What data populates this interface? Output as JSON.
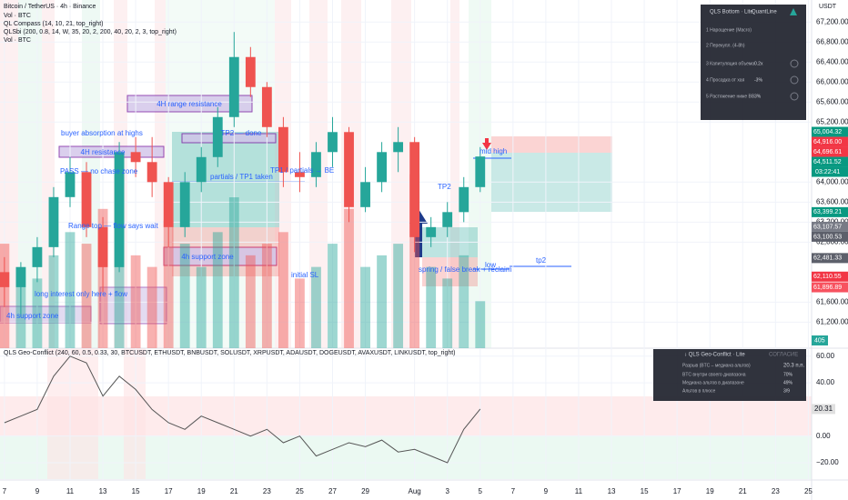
{
  "header": {
    "symbol": "Bitcoin / TetherUS · 4h · Binance",
    "lines": [
      "Vol · BTC",
      "QL Compass (14, 10, 21, top_right)",
      "QLSbi (200, 0.8, 14, W, 35, 20, 2, 200, 40, 20, 2, 3, top_right)",
      "Vol · BTC"
    ],
    "currency": "USDT",
    "countdown": "03:22:41"
  },
  "chart_data": [
    {
      "type": "candlestick",
      "x": [
        7,
        8,
        9,
        10,
        11,
        12,
        13,
        14,
        15,
        16,
        17,
        18,
        19,
        20,
        21,
        22,
        23,
        24,
        25,
        26,
        27,
        28,
        29,
        30,
        31,
        32,
        33,
        34,
        35,
        36
      ],
      "open": [
        62200,
        61900,
        62300,
        62700,
        63700,
        64200,
        63100,
        62300,
        64600,
        64400,
        64000,
        63100,
        64000,
        64500,
        65300,
        66500,
        65900,
        65100,
        64200,
        64100,
        64600,
        65000,
        63500,
        64000,
        64600,
        64800,
        62900,
        63100,
        63400,
        63900
      ],
      "high": [
        62500,
        62400,
        62900,
        63900,
        64500,
        64400,
        63300,
        64800,
        64900,
        64900,
        64100,
        64200,
        64700,
        65500,
        67000,
        66700,
        66000,
        65300,
        64600,
        64800,
        65300,
        65100,
        64300,
        64800,
        65100,
        64900,
        63300,
        63600,
        64100,
        64700
      ],
      "low": [
        61500,
        61300,
        62000,
        62500,
        63500,
        62900,
        61800,
        62200,
        64100,
        63700,
        62700,
        62900,
        63800,
        64300,
        65100,
        65700,
        64900,
        63900,
        63800,
        63900,
        64300,
        63200,
        63400,
        63800,
        64200,
        62600,
        62700,
        62900,
        63200,
        63800
      ],
      "close": [
        61900,
        62300,
        62700,
        63700,
        64200,
        63100,
        62300,
        64600,
        64400,
        64000,
        63100,
        64000,
        64500,
        65300,
        66500,
        65900,
        65100,
        64200,
        64100,
        64600,
        65000,
        63500,
        64000,
        64600,
        64800,
        62900,
        63100,
        63400,
        63900,
        64511.52
      ],
      "volume": [
        900,
        700,
        600,
        800,
        1000,
        900,
        1200,
        1500,
        800,
        700,
        1100,
        900,
        700,
        1000,
        1300,
        800,
        900,
        1000,
        600,
        700,
        900,
        1200,
        700,
        800,
        900,
        1500,
        700,
        600,
        800,
        405
      ],
      "volume_lim": [
        0,
        3000
      ],
      "up_color": "#26a69a",
      "down_color": "#ef5350",
      "xlim": [
        6.73,
        56.2
      ],
      "ylim": [
        60680,
        67640
      ],
      "yticks": [
        {
          "value": 67200,
          "label": "67,200.00"
        },
        {
          "value": 66800,
          "label": "66,800.00"
        },
        {
          "value": 66400,
          "label": "66,400.00"
        },
        {
          "value": 66000,
          "label": "66,000.00"
        },
        {
          "value": 65600,
          "label": "65,600.00"
        },
        {
          "value": 65200,
          "label": "65,200.00"
        },
        {
          "value": 64000,
          "label": "64,000.00"
        },
        {
          "value": 63600,
          "label": "63,600.00"
        },
        {
          "value": 63200,
          "label": "63,200.00"
        },
        {
          "value": 62800,
          "label": "62,800.00"
        },
        {
          "value": 61600,
          "label": "61,600.00"
        },
        {
          "value": 61200,
          "label": "61,200.00"
        }
      ],
      "xticks": [
        7,
        9,
        11,
        13,
        15,
        17,
        19,
        21,
        23,
        25,
        27,
        29,
        {
          "value": 32,
          "label": "Aug"
        },
        {
          "value": 34,
          "label": "3"
        },
        {
          "value": 36,
          "label": "5"
        },
        {
          "value": 38,
          "label": "7"
        },
        {
          "value": 40,
          "label": "9"
        },
        {
          "value": 42,
          "label": "11"
        },
        {
          "value": 44,
          "label": "13"
        },
        {
          "value": 46,
          "label": "15"
        },
        {
          "value": 48,
          "label": "17"
        },
        {
          "value": 50,
          "label": "19"
        },
        {
          "value": 52,
          "label": "21"
        },
        {
          "value": 54,
          "label": "23"
        },
        {
          "value": 56,
          "label": "25"
        }
      ],
      "price_labels": [
        {
          "value": 65004.32,
          "label": "65,004.32",
          "color": "#089981"
        },
        {
          "value": 64916,
          "label": "64,916.00",
          "color": "#f23645"
        },
        {
          "value": 64696.61,
          "label": "64,696.61",
          "color": "#f23645"
        },
        {
          "value": 64511.52,
          "label": "64,511.52",
          "color": "#089981"
        },
        {
          "value": 63399.21,
          "label": "63,399.21",
          "color": "#089981"
        },
        {
          "value": 63107.57,
          "label": "63,107.57",
          "color": "#787b86"
        },
        {
          "value": 63100.53,
          "label": "63,100.53",
          "color": "#5d606b"
        },
        {
          "value": 62481.33,
          "label": "62,481.33",
          "color": "#5d606b"
        },
        {
          "value": 62110.55,
          "label": "62,110.55",
          "color": "#f23645"
        },
        {
          "value": 61896.89,
          "label": "61,896.89",
          "color": "#f7525f"
        }
      ]
    },
    {
      "type": "line",
      "title": "QLS Geo-Conflict (240, 60, 0.5, 0.33, 30, BTCUSDT, ETHUSDT, BNBUSDT, SOLUSDT, XRPUSDT, ADAUSDT, DOGEUSDT, AVAXUSDT, LINKUSDT, top_right)",
      "x": [
        7,
        8,
        9,
        10,
        11,
        12,
        13,
        14,
        15,
        16,
        17,
        18,
        19,
        20,
        21,
        22,
        23,
        24,
        25,
        26,
        27,
        28,
        29,
        30,
        31,
        32,
        33,
        34,
        35,
        36
      ],
      "values": [
        10,
        15,
        20,
        45,
        60,
        55,
        30,
        45,
        35,
        20,
        10,
        5,
        15,
        10,
        5,
        0,
        5,
        -5,
        0,
        -15,
        -10,
        -5,
        -8,
        -3,
        -12,
        -10,
        -15,
        -20,
        5,
        20.31
      ],
      "color": "#555555",
      "ylim": [
        -33,
        66
      ],
      "yticks": [
        {
          "value": 60,
          "label": "60.00"
        },
        {
          "value": 40,
          "label": "40.00"
        },
        {
          "value": 0,
          "label": "0.00"
        },
        {
          "value": -20,
          "label": "−20.00"
        }
      ]
    }
  ],
  "annotations": [
    "4H range resistance",
    "4H resistance",
    "TP2 — done",
    "buyer absorption at highs",
    "PASS — no chase zone",
    "partials / TP1 taken",
    "TP1 / partials → BE",
    "Range top — flow says wait",
    "4h support zone",
    "initial SL",
    "long interest only here + flow",
    "4h support zone",
    "TP2",
    "mid high",
    "spring / false break + reclaim",
    "low",
    "tp2"
  ],
  "panels": {
    "bottom": {
      "title": "QLS Bottom · Lite",
      "brand": "QuantLine",
      "rows": [
        "1 Нарощение (Macro)",
        "2 Перекупл. (4-8h)",
        "3 Капитуляция объема",
        "4 Просадка от хая",
        "5 Растяжение ниже BB"
      ],
      "values": [
        "0.2x",
        "-3%",
        "3%"
      ]
    },
    "geo": {
      "title": "↓ QLS Geo-Conflict · Lite",
      "state": "СОГЛАСИЕ",
      "rows": [
        [
          "Разрыв (BTC – медиана альтов)",
          "20.3 п.п."
        ],
        [
          "BTC внутри своего диапазона",
          "70%"
        ],
        [
          "Медиана альтов в диапазоне",
          "49%"
        ],
        [
          "Альтов в плюсе",
          "3/9"
        ]
      ]
    }
  }
}
